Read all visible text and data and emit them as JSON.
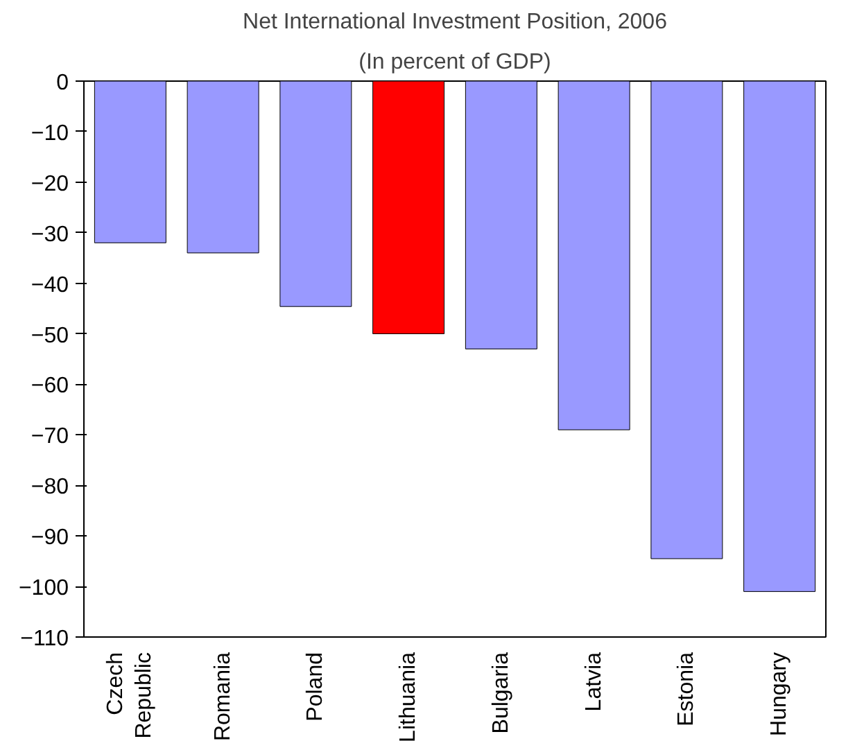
{
  "chart_data": {
    "type": "bar",
    "title": "Net International Investment Position, 2006",
    "subtitle": "(In percent of GDP)",
    "categories": [
      "Czech\nRepublic",
      "Romania",
      "Poland",
      "Lithuania",
      "Bulgaria",
      "Latvia",
      "Estonia",
      "Hungary"
    ],
    "values": [
      -32,
      -34,
      -44.6,
      -50,
      -53,
      -69,
      -94.5,
      -101
    ],
    "colors": [
      "#9999ff",
      "#9999ff",
      "#9999ff",
      "#ff0000",
      "#9999ff",
      "#9999ff",
      "#9999ff",
      "#9999ff"
    ],
    "ylim": [
      -110,
      0
    ],
    "yticks": [
      0,
      -10,
      -20,
      -30,
      -40,
      -50,
      -60,
      -70,
      -80,
      -90,
      -100,
      -110
    ],
    "grid": false
  }
}
